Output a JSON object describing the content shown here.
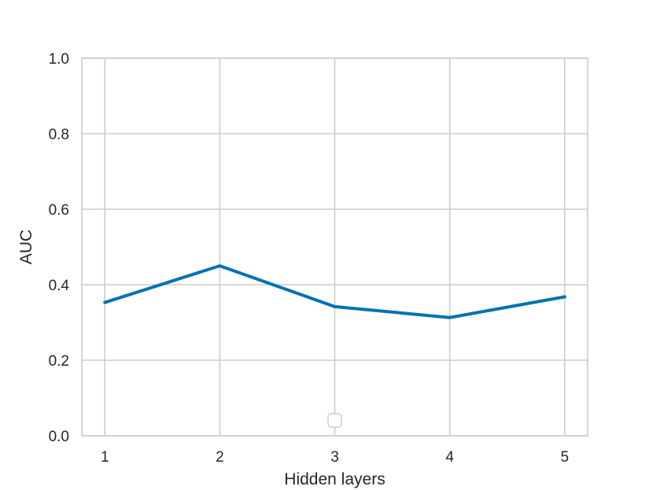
{
  "chart_data": {
    "type": "line",
    "title": "",
    "xlabel": "Hidden layers",
    "ylabel": "AUC",
    "x": [
      1,
      2,
      3,
      4,
      5
    ],
    "xticks": [
      "1",
      "2",
      "3",
      "4",
      "5"
    ],
    "yticks": [
      "0.0",
      "0.2",
      "0.4",
      "0.6",
      "0.8",
      "1.0"
    ],
    "ylim": [
      0,
      1
    ],
    "xlim": [
      0.8,
      5.2
    ],
    "grid": true,
    "legend": "bottom-center, empty",
    "series": [
      {
        "values": [
          0.353,
          0.45,
          0.342,
          0.313,
          0.368
        ],
        "color": "#0072b2"
      }
    ]
  }
}
